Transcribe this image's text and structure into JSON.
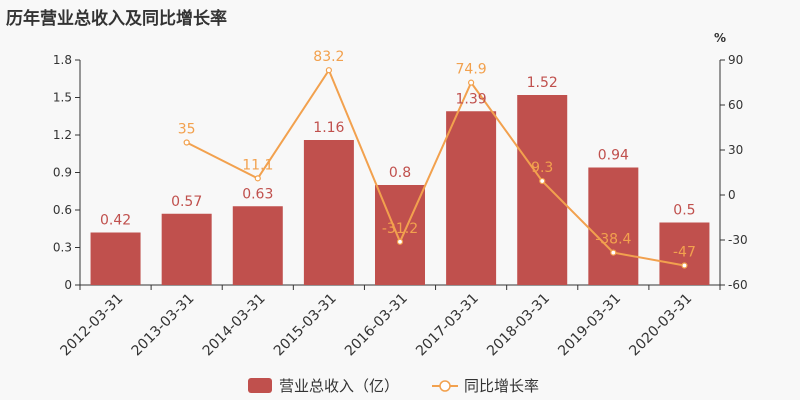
{
  "chart_data": {
    "type": "bar",
    "title": "历年营业总收入及同比增长率",
    "right_axis_unit": "%",
    "categories": [
      "2012-03-31",
      "2013-03-31",
      "2014-03-31",
      "2015-03-31",
      "2016-03-31",
      "2017-03-31",
      "2018-03-31",
      "2019-03-31",
      "2020-03-31"
    ],
    "series": [
      {
        "name": "营业总收入（亿）",
        "type": "bar",
        "axis": "left",
        "color": "#c0504d",
        "values": [
          0.42,
          0.57,
          0.63,
          1.16,
          0.8,
          1.39,
          1.52,
          0.94,
          0.5
        ],
        "labels": [
          "0.42",
          "0.57",
          "0.63",
          "1.16",
          "0.8",
          "1.39",
          "1.52",
          "0.94",
          "0.5"
        ]
      },
      {
        "name": "同比增长率",
        "type": "line",
        "axis": "right",
        "color": "#f2a14e",
        "values": [
          null,
          35,
          11.1,
          83.2,
          -31.2,
          74.9,
          9.3,
          -38.4,
          -47
        ],
        "labels": [
          "",
          "35",
          "11.1",
          "83.2",
          "-31.2",
          "74.9",
          "9.3",
          "-38.4",
          "-47"
        ]
      }
    ],
    "y_left": {
      "range": [
        0,
        1.8
      ],
      "ticks": [
        "0",
        "0.3",
        "0.6",
        "0.9",
        "1.2",
        "1.5",
        "1.8"
      ]
    },
    "y_right": {
      "range": [
        -60,
        90
      ],
      "ticks": [
        "-60",
        "-30",
        "0",
        "30",
        "60",
        "90"
      ]
    },
    "grid": false,
    "legend_position": "bottom-center"
  }
}
